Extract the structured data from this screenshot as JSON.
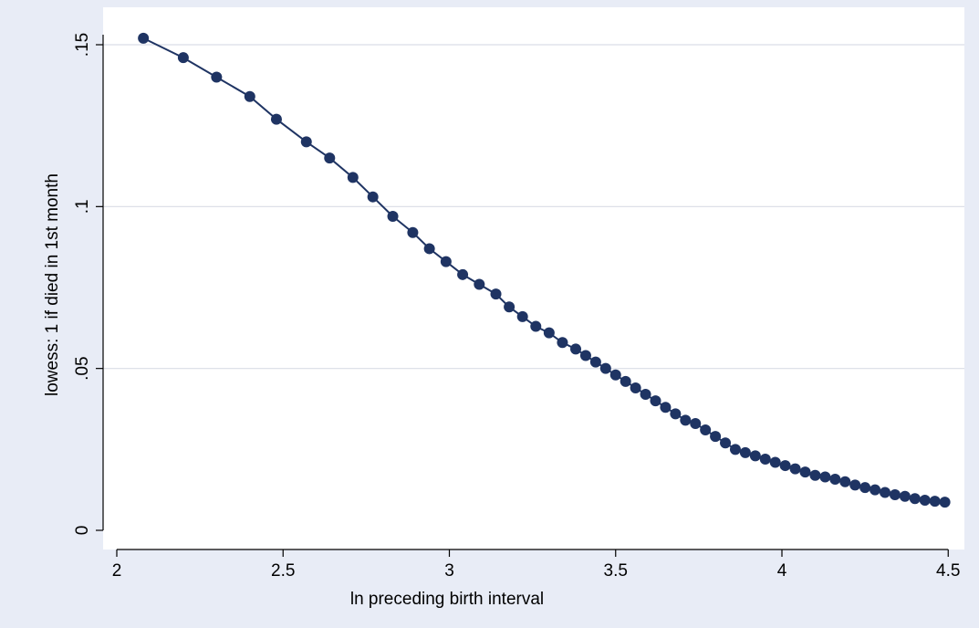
{
  "chart_data": {
    "type": "line",
    "title": "",
    "xlabel": "ln preceding birth interval",
    "ylabel": "lowess: 1 if died in 1st month",
    "xlim": [
      2.0,
      4.5
    ],
    "ylim": [
      0,
      0.15
    ],
    "xticks": [
      2,
      2.5,
      3,
      3.5,
      4,
      4.5
    ],
    "xtick_labels": [
      "2",
      "2.5",
      "3",
      "3.5",
      "4",
      "4.5"
    ],
    "yticks": [
      0,
      0.05,
      0.1,
      0.15
    ],
    "ytick_labels": [
      "0",
      ".05",
      ".1",
      ".15"
    ],
    "grid": "horizontal",
    "legend": "none",
    "colors": {
      "background": "#e8ecf6",
      "plot": "#ffffff",
      "series": "#1f3463",
      "grid": "#d9dde6"
    },
    "series": [
      {
        "markers": true,
        "x": [
          2.08,
          2.2,
          2.3,
          2.4,
          2.48,
          2.57,
          2.64,
          2.71,
          2.77,
          2.83,
          2.89,
          2.94,
          2.99,
          3.04,
          3.09,
          3.14,
          3.18,
          3.22,
          3.26,
          3.3,
          3.34,
          3.38,
          3.41,
          3.44,
          3.47,
          3.5,
          3.53,
          3.56,
          3.59,
          3.62,
          3.65,
          3.68,
          3.71,
          3.74,
          3.77,
          3.8,
          3.83,
          3.86,
          3.89,
          3.92,
          3.95,
          3.98,
          4.01,
          4.04,
          4.07,
          4.1,
          4.13,
          4.16,
          4.19,
          4.22,
          4.25,
          4.28,
          4.31,
          4.34,
          4.37,
          4.4,
          4.43,
          4.46,
          4.49
        ],
        "y": [
          0.152,
          0.146,
          0.14,
          0.134,
          0.127,
          0.12,
          0.115,
          0.109,
          0.103,
          0.097,
          0.092,
          0.087,
          0.083,
          0.079,
          0.076,
          0.073,
          0.069,
          0.066,
          0.063,
          0.061,
          0.058,
          0.056,
          0.054,
          0.052,
          0.05,
          0.048,
          0.046,
          0.044,
          0.042,
          0.04,
          0.038,
          0.036,
          0.034,
          0.033,
          0.031,
          0.029,
          0.027,
          0.025,
          0.024,
          0.023,
          0.022,
          0.021,
          0.02,
          0.019,
          0.018,
          0.017,
          0.0165,
          0.0158,
          0.015,
          0.014,
          0.0132,
          0.0125,
          0.0117,
          0.011,
          0.0105,
          0.0098,
          0.0093,
          0.009,
          0.0087
        ]
      }
    ]
  }
}
